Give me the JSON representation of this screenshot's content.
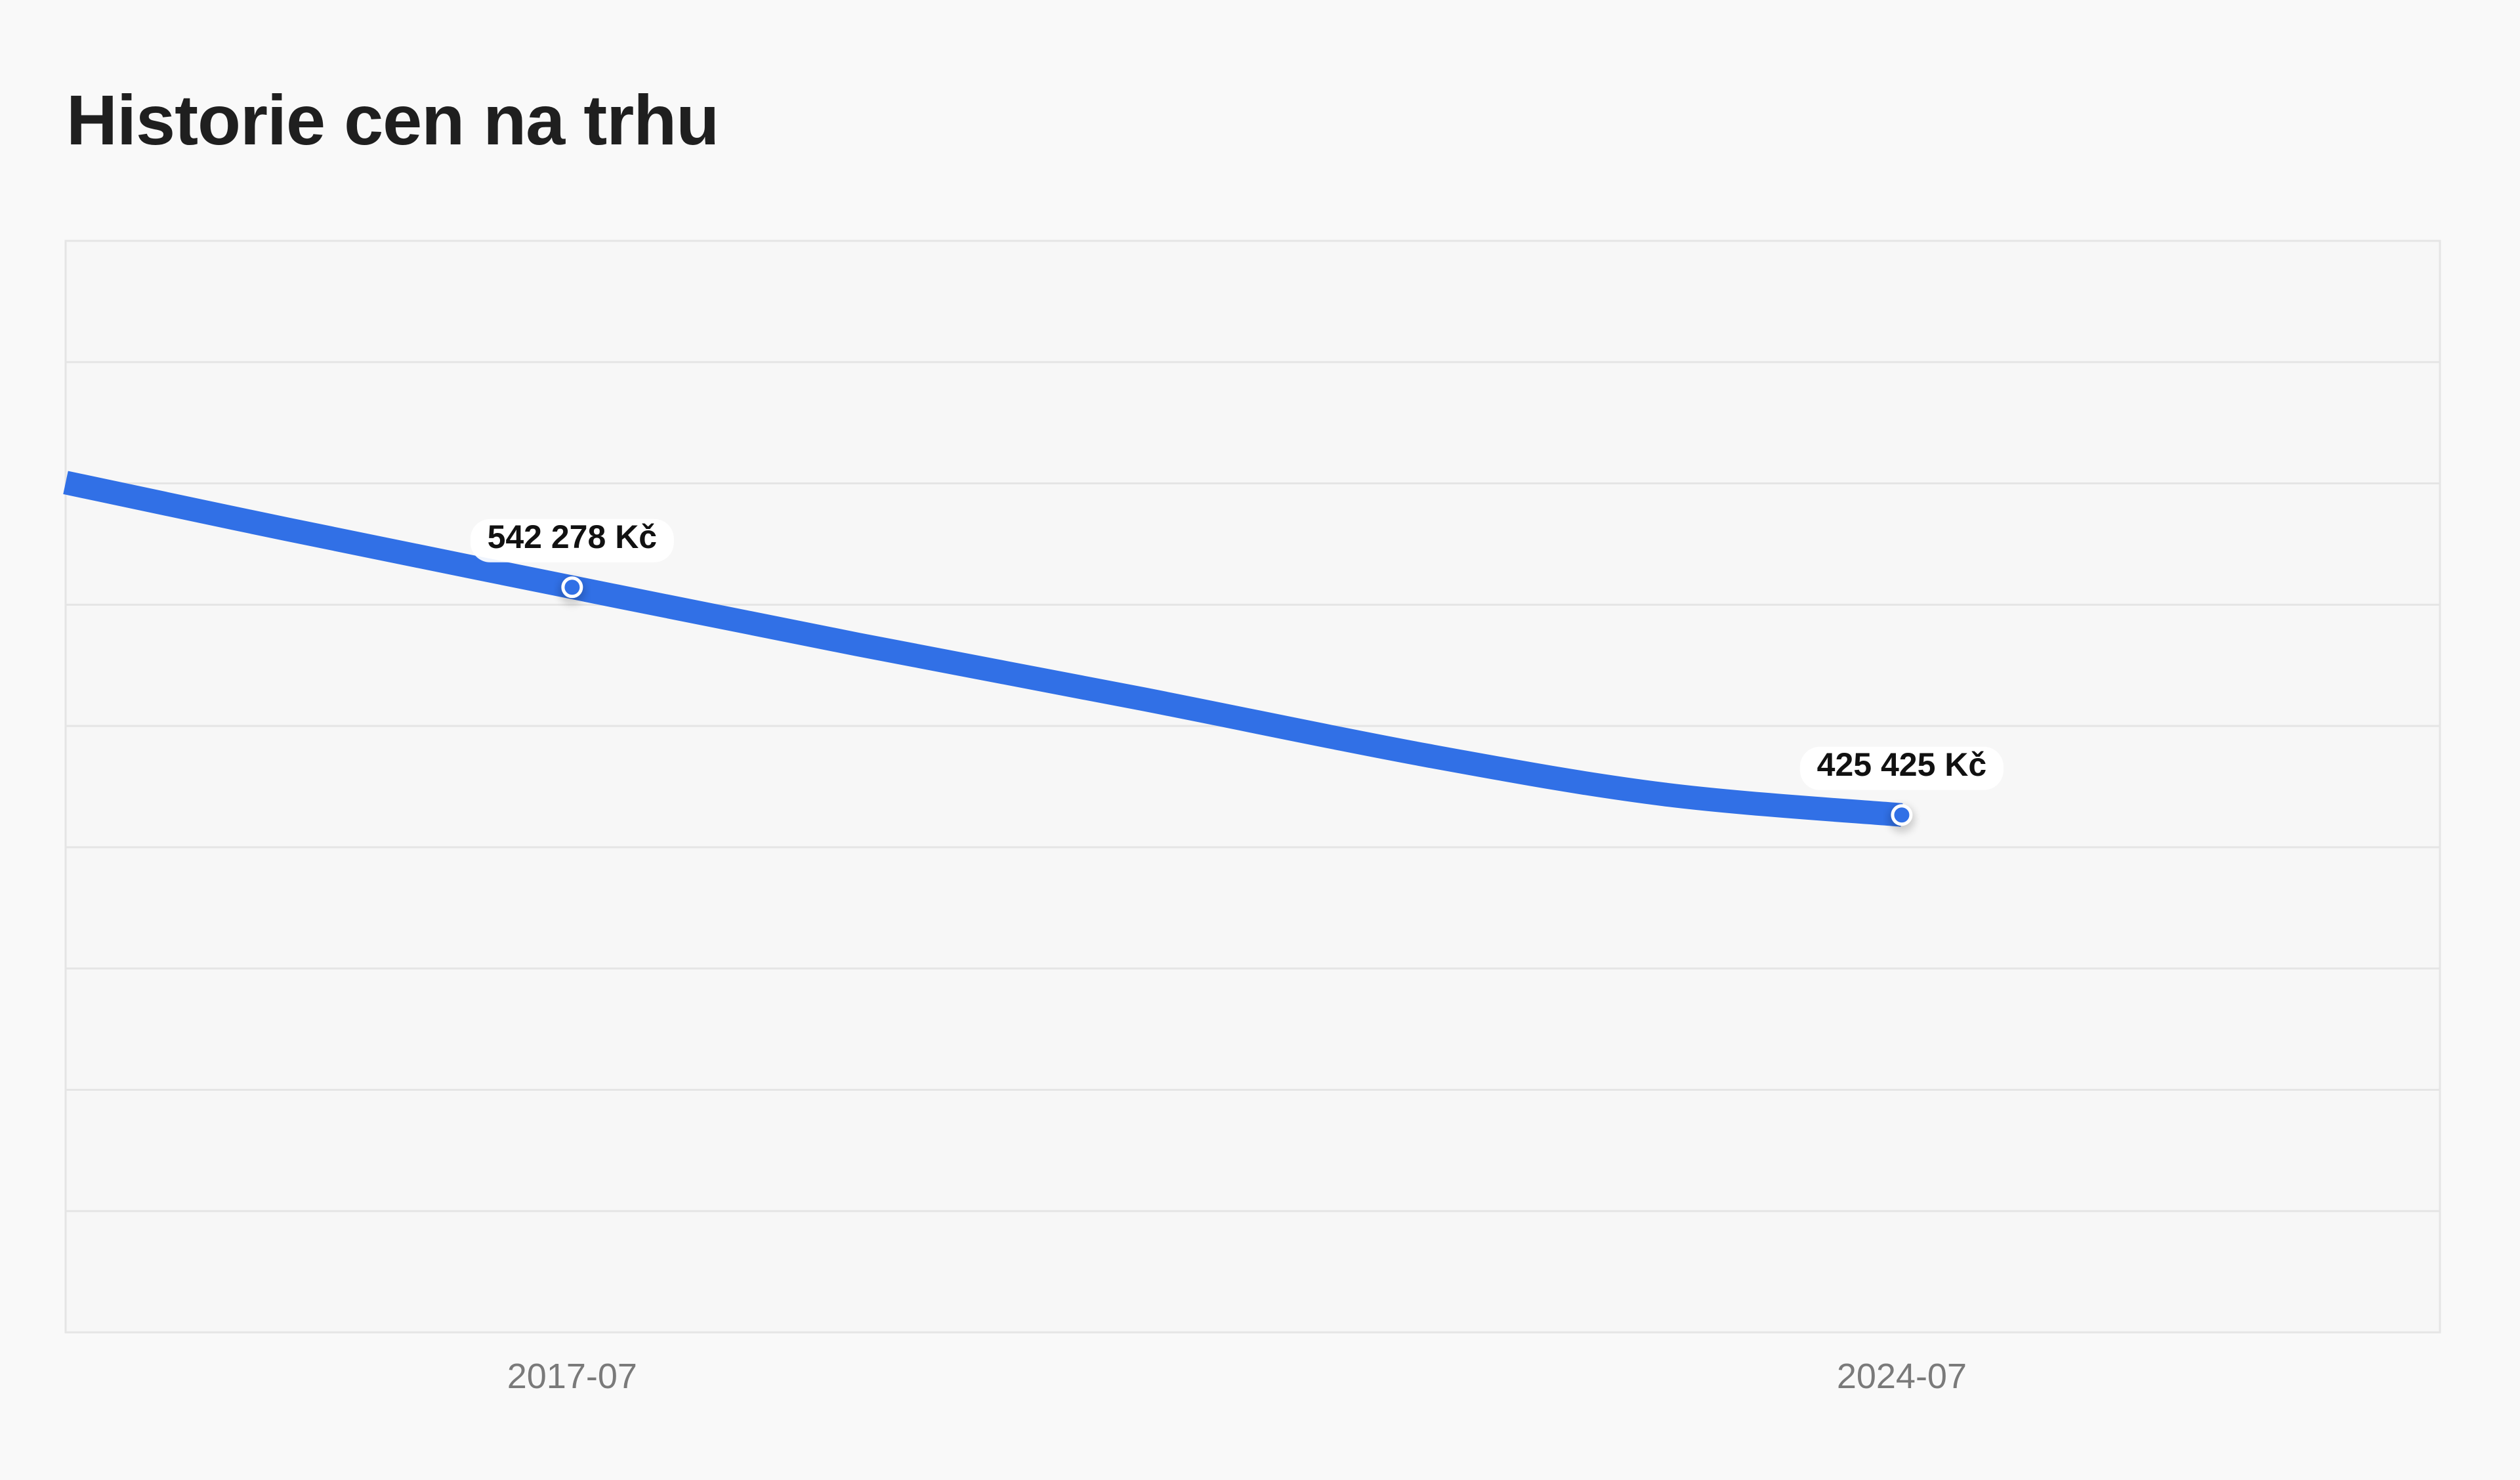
{
  "page": {
    "title": "Historie cen na trhu"
  },
  "chart_data": {
    "type": "line",
    "title": "Historie cen na trhu",
    "xlabel": "",
    "ylabel": "",
    "x_start": "2014-11",
    "x_end": "2027-05",
    "ylim": [
      160000,
      720000
    ],
    "grid": true,
    "legend": "none",
    "x_ticks": [
      "2017-07",
      "2024-07"
    ],
    "y_ticks": [
      160000,
      222222,
      284444,
      346667,
      408889,
      471111,
      533333,
      595556,
      657778,
      720000
    ],
    "y_tick_labels_visible": false,
    "series": [
      {
        "color": "#3170e6",
        "points": [
          {
            "x": "2014-11",
            "y": 596000
          },
          {
            "x": "2016-01",
            "y": 572000
          },
          {
            "x": "2017-07",
            "y": 542278
          },
          {
            "x": "2019-01",
            "y": 513000
          },
          {
            "x": "2020-07",
            "y": 485000
          },
          {
            "x": "2022-01",
            "y": 456000
          },
          {
            "x": "2023-04",
            "y": 436000
          },
          {
            "x": "2024-07",
            "y": 425425
          }
        ],
        "labels": [
          {
            "x": "2017-07",
            "y": 542278,
            "text": "542 278 Kč"
          },
          {
            "x": "2024-07",
            "y": 425425,
            "text": "425 425 Kč"
          }
        ]
      }
    ]
  },
  "colors": {
    "background": "#f9f9f9",
    "plot_background": "#f7f7f7",
    "grid": "#e5e5e5",
    "line": "#3170e6",
    "tick_text": "#7a7a7a",
    "label_text": "#111111"
  }
}
